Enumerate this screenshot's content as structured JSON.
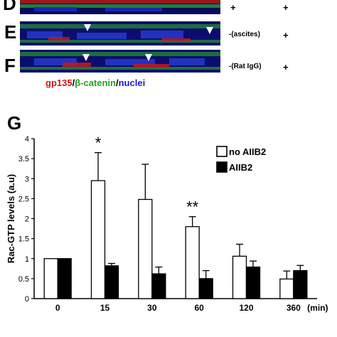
{
  "panels": {
    "D": {
      "letter": "D",
      "condition": "",
      "sign1": "+",
      "sign2": "+"
    },
    "E": {
      "letter": "E",
      "condition": "-(ascites)",
      "sign2": "+"
    },
    "F": {
      "letter": "F",
      "condition": "-(Rat IgG)",
      "sign2": "+"
    }
  },
  "stain_legend": {
    "gp135": "gp135",
    "slash1": "/",
    "beta_catenin": "β-catenin",
    "slash2": "/",
    "nuclei": "nuclei",
    "colors": {
      "gp135": "#d4111a",
      "beta_catenin": "#1fa51f",
      "nuclei": "#1a1ad4"
    }
  },
  "chart_panel_letter": "G",
  "chart_data": {
    "type": "bar",
    "categories": [
      "0",
      "15",
      "30",
      "60",
      "120",
      "360"
    ],
    "x_unit_label": "(min)",
    "ylabel": "Rac-GTP levels (a.u)",
    "ylim": [
      0,
      4
    ],
    "yticks": [
      "0",
      "0.5",
      "1",
      "1.5",
      "2",
      "2.5",
      "3",
      "3.5",
      "4"
    ],
    "series": [
      {
        "name": "no AIIB2",
        "fill": "#ffffff",
        "values": [
          1.0,
          2.95,
          2.48,
          1.8,
          1.06,
          0.49
        ],
        "errors": [
          0,
          0.7,
          0.88,
          0.25,
          0.3,
          0.2
        ]
      },
      {
        "name": "AIIB2",
        "fill": "#000000",
        "values": [
          1.0,
          0.82,
          0.62,
          0.5,
          0.79,
          0.7
        ],
        "errors": [
          0,
          0.06,
          0.17,
          0.2,
          0.15,
          0.13
        ]
      }
    ],
    "annotations": [
      {
        "category": "15",
        "text": "*"
      },
      {
        "category": "60",
        "text": "**"
      }
    ],
    "legend_position": "top-right",
    "grid": false
  }
}
